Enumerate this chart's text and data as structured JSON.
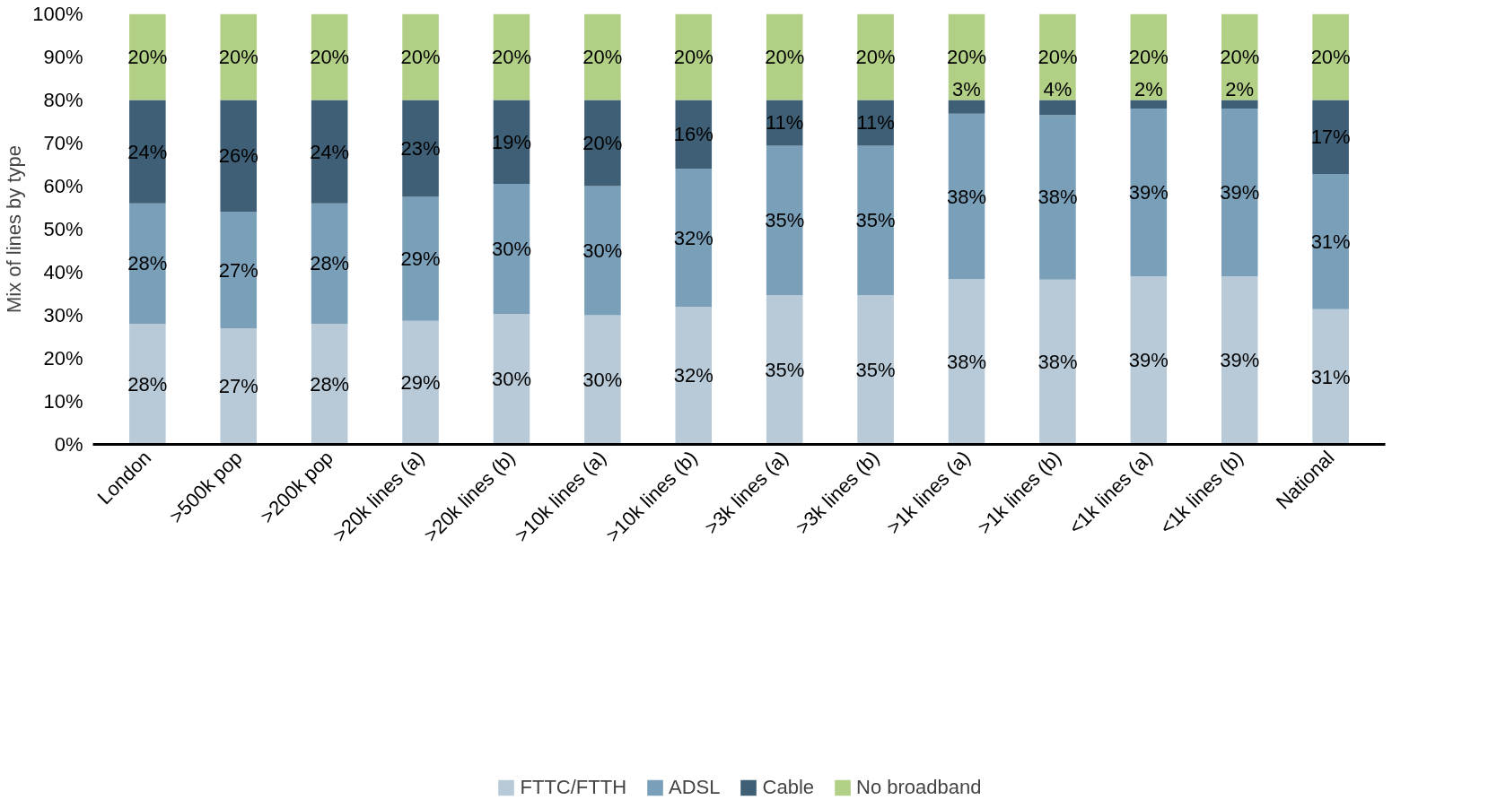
{
  "chart_data": {
    "type": "bar",
    "stacked": true,
    "ylabel": "Mix of lines by type",
    "categories": [
      "London",
      ">500k pop",
      ">200k pop",
      ">20k lines (a)",
      ">20k lines (b)",
      ">10k lines (a)",
      ">10k lines (b)",
      ">3k lines (a)",
      ">3k lines (b)",
      ">1k lines (a)",
      ">1k lines (b)",
      "<1k lines (a)",
      "<1k lines (b)",
      "National"
    ],
    "series": [
      {
        "name": "FTTC/FTTH",
        "color": "#b8cad8",
        "values": [
          28,
          27,
          28,
          28.7,
          30.3,
          30,
          32,
          34.7,
          34.7,
          38.4,
          38.3,
          39,
          39,
          31.4
        ],
        "value_labels": [
          "28%",
          "27%",
          "28%",
          "29%",
          "30%",
          "30%",
          "32%",
          "35%",
          "35%",
          "38%",
          "38%",
          "39%",
          "39%",
          "31%"
        ]
      },
      {
        "name": "ADSL",
        "color": "#7a9fb9",
        "values": [
          28,
          27,
          28,
          28.8,
          30.2,
          30,
          32,
          34.7,
          34.7,
          38.4,
          38.2,
          39,
          39,
          31.4
        ],
        "value_labels": [
          "28%",
          "27%",
          "28%",
          "29%",
          "30%",
          "30%",
          "32%",
          "35%",
          "35%",
          "38%",
          "38%",
          "39%",
          "39%",
          "31%"
        ]
      },
      {
        "name": "Cable",
        "color": "#3e5f75",
        "values": [
          24,
          26,
          24,
          22.5,
          19.5,
          20,
          16,
          10.6,
          10.6,
          3.2,
          3.5,
          2,
          2,
          17.2
        ],
        "value_labels": [
          "24%",
          "26%",
          "24%",
          "23%",
          "19%",
          "20%",
          "16%",
          "11%",
          "11%",
          "3%",
          "4%",
          "2%",
          "2%",
          "17%"
        ]
      },
      {
        "name": "No broadband",
        "color": "#b2cf86",
        "values": [
          20,
          20,
          20,
          20,
          20,
          20,
          20,
          20,
          20,
          20,
          20,
          20,
          20,
          20
        ],
        "value_labels": [
          "20%",
          "20%",
          "20%",
          "20%",
          "20%",
          "20%",
          "20%",
          "20%",
          "20%",
          "20%",
          "20%",
          "20%",
          "20%",
          "20%"
        ]
      }
    ],
    "ylim": [
      0,
      100
    ],
    "yticks": [
      {
        "value": 0,
        "label": "0%"
      },
      {
        "value": 10,
        "label": "10%"
      },
      {
        "value": 20,
        "label": "20%"
      },
      {
        "value": 30,
        "label": "30%"
      },
      {
        "value": 40,
        "label": "40%"
      },
      {
        "value": 50,
        "label": "50%"
      },
      {
        "value": 60,
        "label": "60%"
      },
      {
        "value": 70,
        "label": "70%"
      },
      {
        "value": 80,
        "label": "80%"
      },
      {
        "value": 90,
        "label": "90%"
      },
      {
        "value": 100,
        "label": "100%"
      }
    ],
    "legend": "bottom"
  }
}
